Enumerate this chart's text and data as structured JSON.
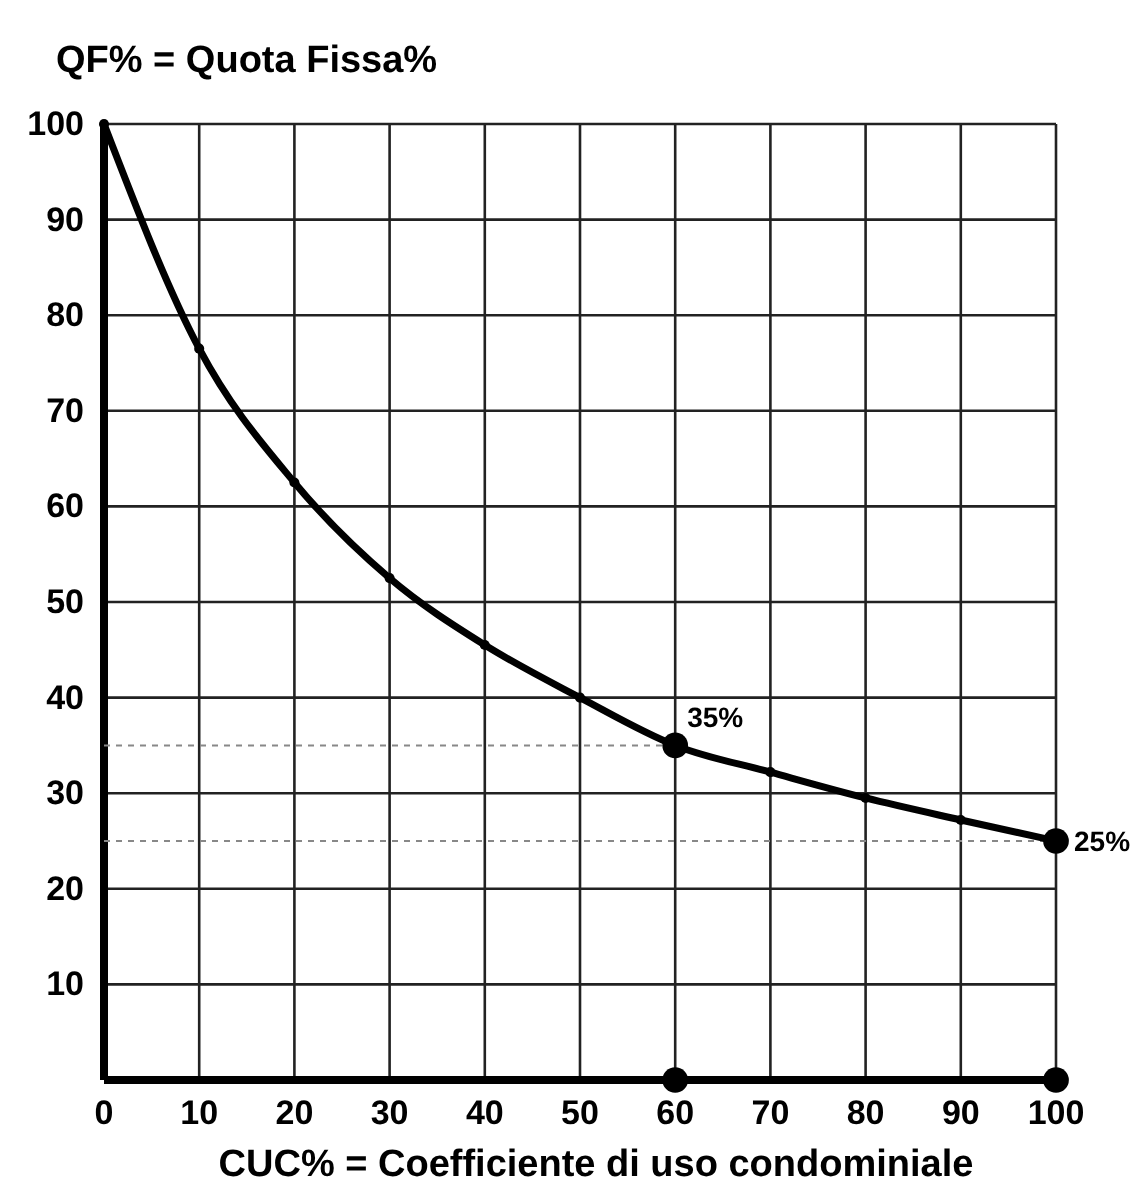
{
  "chart_data": {
    "type": "line",
    "ylabel": "QF% = Quota Fissa%",
    "xlabel": "CUC% = Coefficiente di uso condominiale",
    "xlim": [
      0,
      100
    ],
    "ylim": [
      0,
      100
    ],
    "xticks": [
      0,
      10,
      20,
      30,
      40,
      50,
      60,
      70,
      80,
      90,
      100
    ],
    "yticks": [
      {
        "value": 0,
        "label": null
      },
      10,
      20,
      30,
      40,
      50,
      60,
      70,
      80,
      90,
      100
    ],
    "grid": true,
    "marker": "circle",
    "line_style": "solid",
    "series": [
      {
        "color": "#000000",
        "x": [
          0,
          10,
          20,
          30,
          40,
          50,
          60,
          70,
          80,
          90,
          100
        ],
        "values": [
          100,
          76.5,
          62.5,
          52.5,
          45.5,
          40,
          35,
          32.2,
          29.5,
          27.2,
          25
        ]
      },
      {
        "type": "scatter",
        "color": "#000000",
        "x": [
          60,
          100,
          60,
          100
        ],
        "values": [
          35,
          25,
          0,
          0
        ]
      }
    ],
    "ref_lines": [
      {
        "axis": "y",
        "value": 35,
        "color": "#888888",
        "line_style": "dashed"
      },
      {
        "axis": "y",
        "value": 25,
        "color": "#888888",
        "line_style": "dashed"
      }
    ],
    "annotations": [
      {
        "text": "35%",
        "x": 60,
        "y": 35
      },
      {
        "text": "25%",
        "x": 100,
        "y": 25
      }
    ]
  }
}
